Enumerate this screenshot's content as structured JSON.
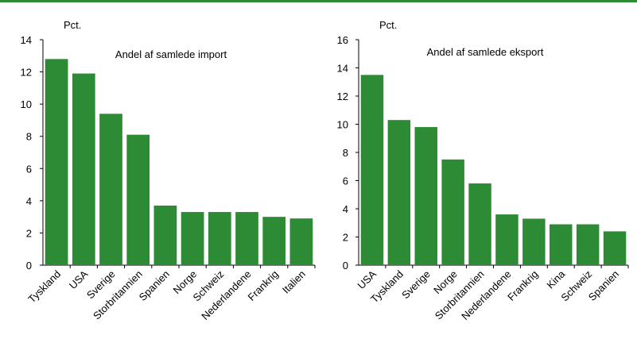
{
  "colors": {
    "bar": "#2e8b35",
    "rule": "#2e8b35",
    "axis": "#000000"
  },
  "chart_data": [
    {
      "type": "bar",
      "title": "Andel af samlede import",
      "unit_label": "Pct.",
      "ylim": [
        0,
        14
      ],
      "yticks": [
        0,
        2,
        4,
        6,
        8,
        10,
        12,
        14
      ],
      "grid": false,
      "categories": [
        "Tyskland",
        "USA",
        "Sverige",
        "Storbritannien",
        "Spanien",
        "Norge",
        "Schweiz",
        "Nederlandene",
        "Frankrig",
        "Italien"
      ],
      "values": [
        12.8,
        11.9,
        9.4,
        8.1,
        3.7,
        3.3,
        3.3,
        3.3,
        3.0,
        2.9
      ]
    },
    {
      "type": "bar",
      "title": "Andel af samlede eksport",
      "unit_label": "Pct.",
      "ylim": [
        0,
        16
      ],
      "yticks": [
        0,
        2,
        4,
        6,
        8,
        10,
        12,
        14,
        16
      ],
      "grid": false,
      "categories": [
        "USA",
        "Tyskland",
        "Sverige",
        "Norge",
        "Storbritannien",
        "Nederlandene",
        "Frankrig",
        "Kina",
        "Schweiz",
        "Spanien"
      ],
      "values": [
        13.5,
        10.3,
        9.8,
        7.5,
        5.8,
        3.6,
        3.3,
        2.9,
        2.9,
        2.4
      ]
    }
  ]
}
